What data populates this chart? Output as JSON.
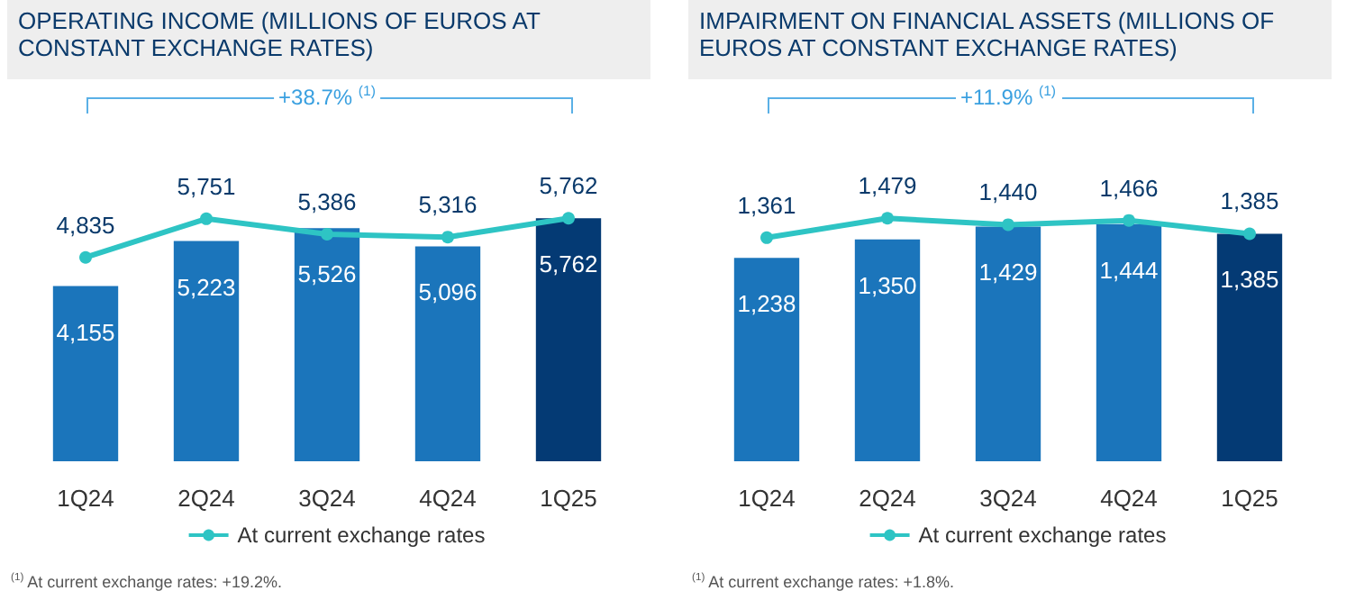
{
  "chart_data": [
    {
      "type": "bar",
      "title": "OPERATING INCOME (MILLIONS OF EUROS AT CONSTANT EXCHANGE RATES)",
      "categories": [
        "1Q24",
        "2Q24",
        "3Q24",
        "4Q24",
        "1Q25"
      ],
      "series": [
        {
          "values": [
            4155,
            5223,
            5526,
            5096,
            5762
          ],
          "value_labels": [
            "4,155",
            "5,223",
            "5,526",
            "5,096",
            "5,762"
          ],
          "colors": [
            "#1b75bb",
            "#1b75bb",
            "#1b75bb",
            "#1b75bb",
            "#043a74"
          ]
        },
        {
          "type": "line",
          "name": "At current exchange rates",
          "color": "#2ec4c4",
          "values": [
            4835,
            5751,
            5386,
            5316,
            5762
          ],
          "value_labels": [
            "4,835",
            "5,751",
            "5,386",
            "5,316",
            "5,762"
          ]
        }
      ],
      "annotations": [
        "+38.7% $^{(1)}$",
        "$^{(1)}$ At current exchange rates: +19.2%."
      ],
      "legend": "bottom",
      "marker": "circle",
      "tick_labels": "x"
    },
    {
      "type": "bar",
      "title": "IMPAIRMENT ON FINANCIAL ASSETS (MILLIONS OF EUROS AT CONSTANT EXCHANGE RATES)",
      "categories": [
        "1Q24",
        "2Q24",
        "3Q24",
        "4Q24",
        "1Q25"
      ],
      "series": [
        {
          "values": [
            1238,
            1350,
            1429,
            1444,
            1385
          ],
          "value_labels": [
            "1,238",
            "1,350",
            "1,429",
            "1,444",
            "1,385"
          ],
          "colors": [
            "#1b75bb",
            "#1b75bb",
            "#1b75bb",
            "#1b75bb",
            "#043a74"
          ]
        },
        {
          "type": "line",
          "name": "At current exchange rates",
          "color": "#2ec4c4",
          "values": [
            1361,
            1479,
            1440,
            1466,
            1385
          ],
          "value_labels": [
            "1,361",
            "1,479",
            "1,440",
            "1,466",
            "1,385"
          ]
        }
      ],
      "annotations": [
        "+11.9% $^{(1)}$",
        "$^{(1)}$ At current exchange rates: +1.8%."
      ],
      "legend": "bottom",
      "marker": "circle",
      "tick_labels": "x"
    }
  ]
}
